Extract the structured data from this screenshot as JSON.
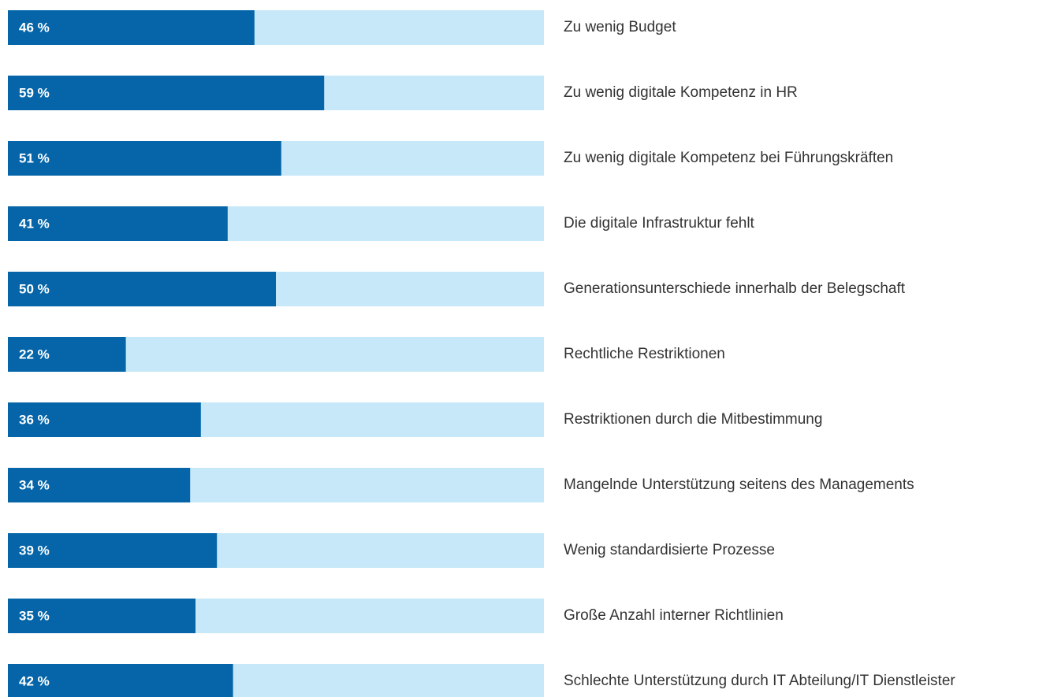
{
  "chart_data": {
    "type": "bar",
    "orientation": "horizontal",
    "categories": [
      "Zu wenig Budget",
      "Zu wenig digitale Kompetenz in HR",
      "Zu wenig digitale Kompetenz bei Führungskräften",
      "Die digitale Infrastruktur fehlt",
      "Generationsunterschiede innerhalb der Belegschaft",
      "Rechtliche Restriktionen",
      "Restriktionen durch die Mitbestimmung",
      "Mangelnde Unterstützung seitens des Managements",
      "Wenig standardisierte Prozesse",
      "Große Anzahl interner Richtlinien",
      "Schlechte Unterstützung durch IT Abteilung/IT Dienstleister"
    ],
    "values": [
      46,
      59,
      51,
      41,
      50,
      22,
      36,
      34,
      39,
      35,
      42
    ],
    "value_labels": [
      "46 %",
      "59 %",
      "51 %",
      "41 %",
      "50 %",
      "22 %",
      "36 %",
      "34 %",
      "39 %",
      "35 %",
      "42 %"
    ],
    "color": "#0565a8",
    "track_color": "#c6e8f8",
    "xlim": [
      0,
      100
    ]
  }
}
